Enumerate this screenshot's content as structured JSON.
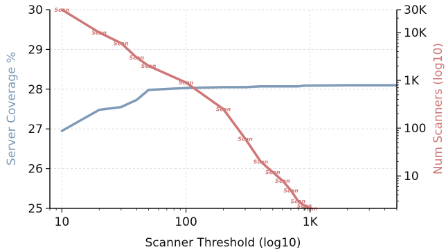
{
  "chart_data": {
    "type": "line",
    "xlabel": "Scanner Threshold (log10)",
    "ylabel": "Server Coverage %",
    "y2label": "Num Scanners (log10)",
    "x_scale": "log",
    "y2_scale": "log",
    "xlim": [
      8,
      5000
    ],
    "ylim": [
      25,
      30
    ],
    "y2lim": [
      2.1,
      30000
    ],
    "grid": true,
    "x_ticks": [
      10,
      100,
      1000
    ],
    "x_tick_labels": [
      "10",
      "100",
      "1K"
    ],
    "y_ticks": [
      25,
      26,
      27,
      28,
      29,
      30
    ],
    "y_tick_labels": [
      "25",
      "26",
      "27",
      "28",
      "29",
      "30"
    ],
    "y2_ticks": [
      10,
      100,
      1000,
      10000,
      30000
    ],
    "y2_tick_labels": [
      "10",
      "100",
      "1K",
      "10K",
      "30K"
    ],
    "colors": {
      "coverage": "#7f9bb8",
      "scanners": "#cf7777"
    },
    "series": [
      {
        "key": "coverage",
        "axis": "left",
        "x": [
          10,
          20,
          30,
          40,
          50,
          100,
          200,
          300,
          400,
          500,
          600,
          700,
          800,
          900,
          1000,
          2000,
          5000
        ],
        "values": [
          26.95,
          27.48,
          27.55,
          27.73,
          27.98,
          28.03,
          28.05,
          28.05,
          28.07,
          28.07,
          28.07,
          28.07,
          28.07,
          28.09,
          28.09,
          28.1,
          28.1
        ]
      },
      {
        "key": "scanners",
        "axis": "right",
        "x": [
          10,
          20,
          30,
          40,
          50,
          100,
          200,
          300,
          400,
          500,
          600,
          700,
          800,
          900,
          1000
        ],
        "values": [
          30000,
          10000,
          6000,
          3000,
          2000,
          900,
          250,
          60,
          20,
          12,
          8,
          5,
          3,
          2.4,
          2.1
        ],
        "point_label": "Scan"
      }
    ]
  }
}
